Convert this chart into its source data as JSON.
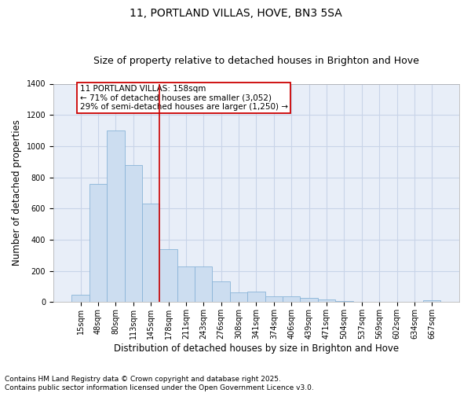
{
  "title": "11, PORTLAND VILLAS, HOVE, BN3 5SA",
  "subtitle": "Size of property relative to detached houses in Brighton and Hove",
  "xlabel": "Distribution of detached houses by size in Brighton and Hove",
  "ylabel": "Number of detached properties",
  "categories": [
    "15sqm",
    "48sqm",
    "80sqm",
    "113sqm",
    "145sqm",
    "178sqm",
    "211sqm",
    "243sqm",
    "276sqm",
    "308sqm",
    "341sqm",
    "374sqm",
    "406sqm",
    "439sqm",
    "471sqm",
    "504sqm",
    "537sqm",
    "569sqm",
    "602sqm",
    "634sqm",
    "667sqm"
  ],
  "values": [
    50,
    760,
    1100,
    880,
    630,
    340,
    230,
    230,
    135,
    65,
    70,
    35,
    35,
    25,
    15,
    8,
    3,
    1,
    2,
    0,
    10
  ],
  "bar_color": "#ccddf0",
  "bar_edge_color": "#8ab4d8",
  "vline_x": 4.5,
  "vline_color": "#cc0000",
  "annotation_text": "11 PORTLAND VILLAS: 158sqm\n← 71% of detached houses are smaller (3,052)\n29% of semi-detached houses are larger (1,250) →",
  "annotation_box_color": "white",
  "annotation_box_edge_color": "#cc0000",
  "ylim": [
    0,
    1400
  ],
  "yticks": [
    0,
    200,
    400,
    600,
    800,
    1000,
    1200,
    1400
  ],
  "grid_color": "#c8d4e8",
  "background_color": "#e8eef8",
  "footer": "Contains HM Land Registry data © Crown copyright and database right 2025.\nContains public sector information licensed under the Open Government Licence v3.0.",
  "title_fontsize": 10,
  "subtitle_fontsize": 9,
  "xlabel_fontsize": 8.5,
  "ylabel_fontsize": 8.5,
  "tick_fontsize": 7,
  "annotation_fontsize": 7.5,
  "footer_fontsize": 6.5
}
